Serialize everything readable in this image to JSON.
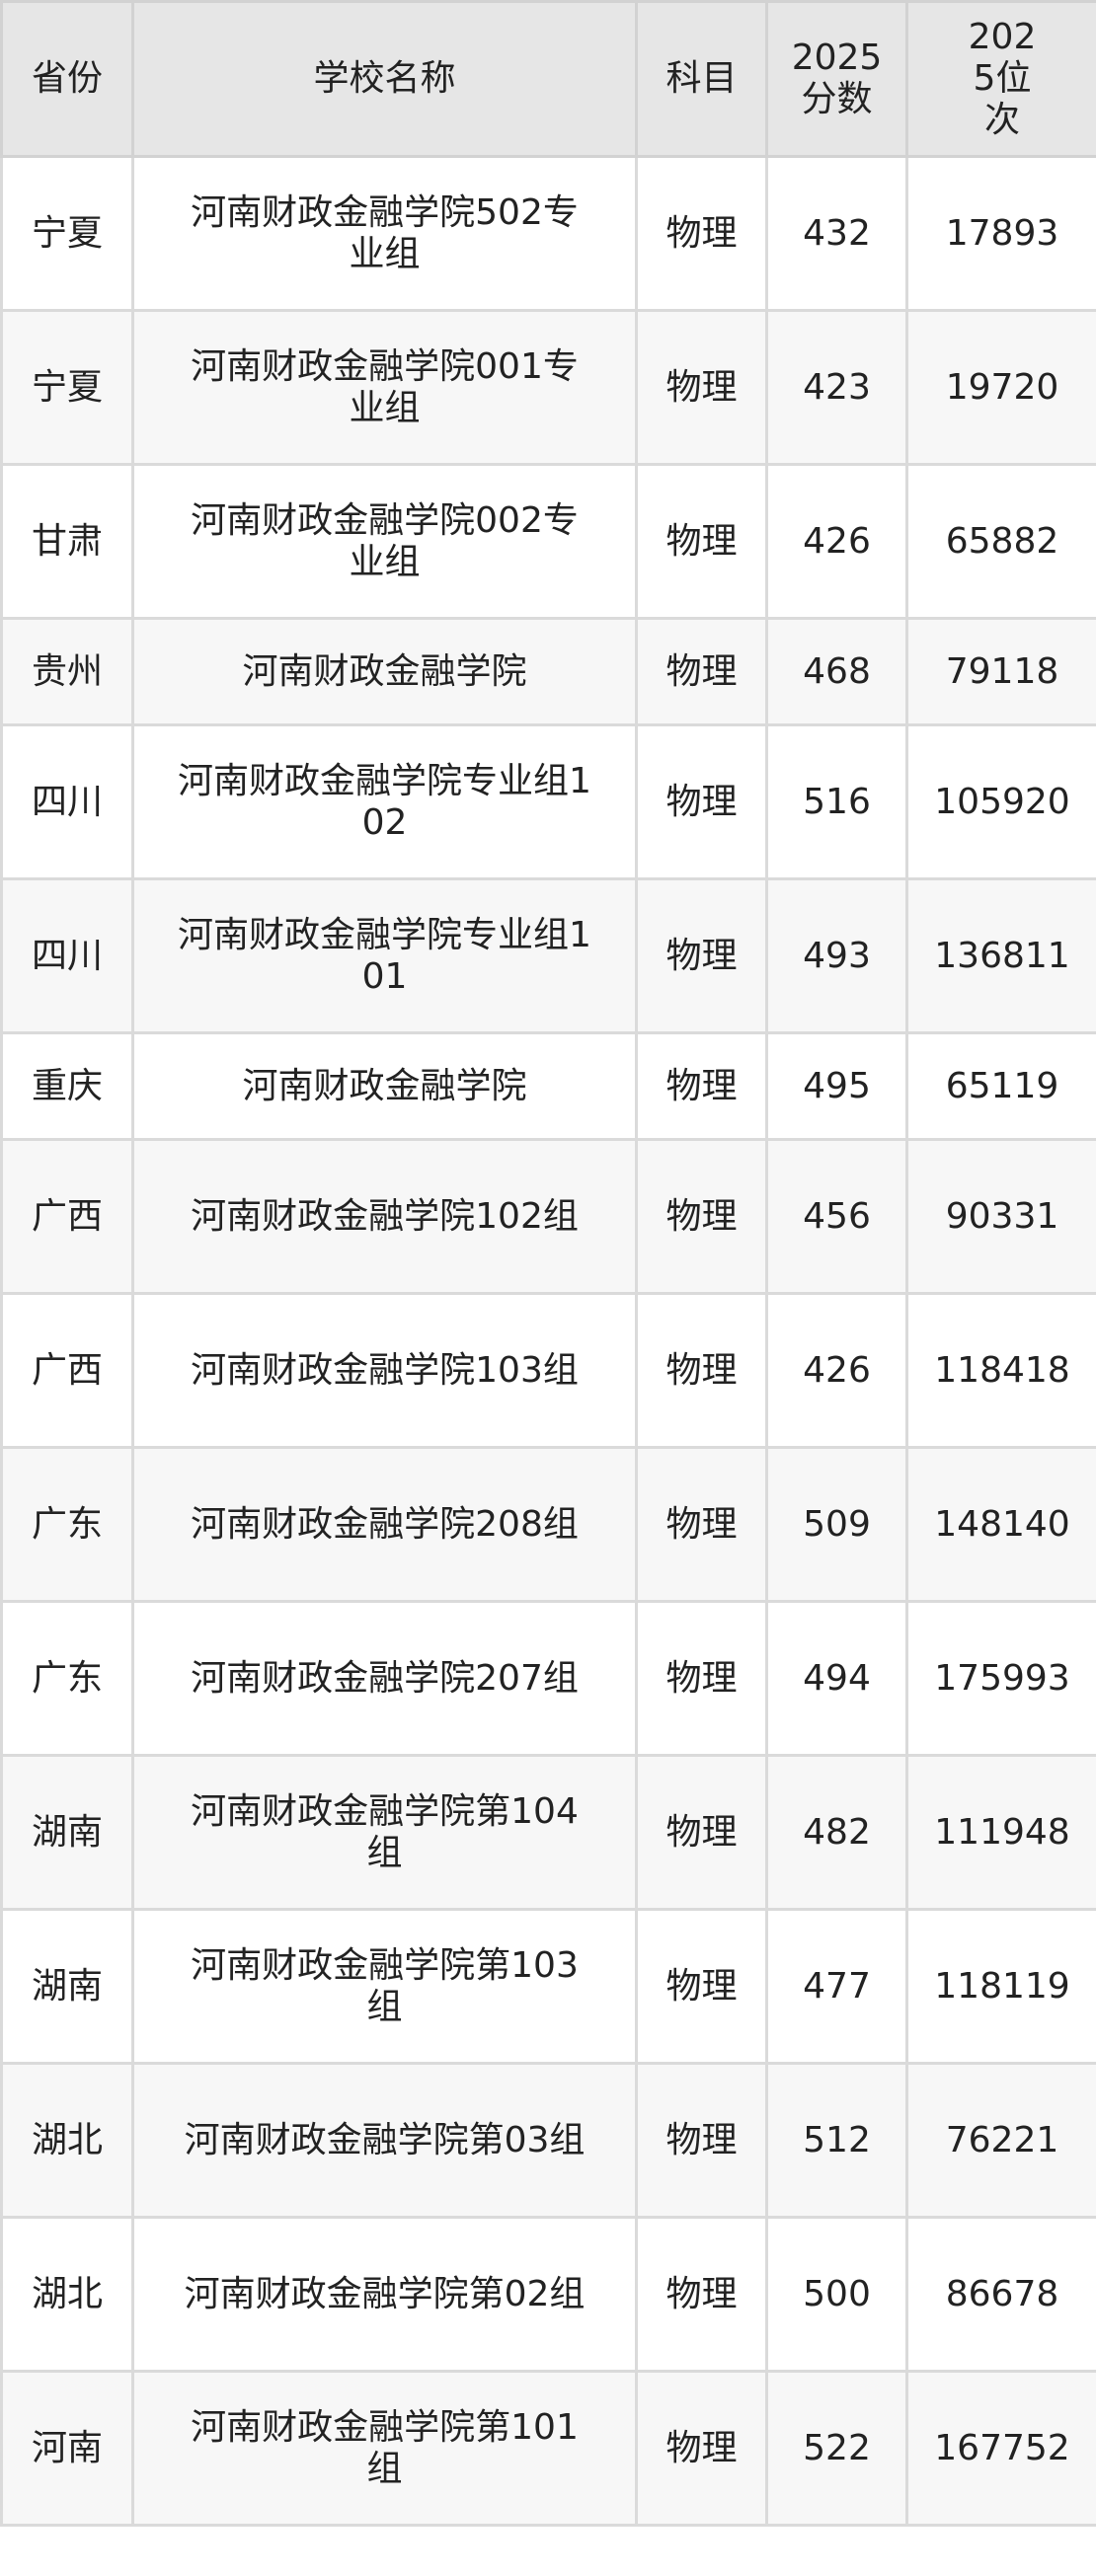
{
  "headers": [
    "省份",
    "学校名称",
    "科目",
    "2025分数",
    "2025位次"
  ],
  "rows": [
    {
      "province": "宁夏",
      "school": "河南财政金融学院502专业组",
      "subject": "物理",
      "score": "432",
      "rank": "17893"
    },
    {
      "province": "宁夏",
      "school": "河南财政金融学院001专业组",
      "subject": "物理",
      "score": "423",
      "rank": "19720"
    },
    {
      "province": "甘肃",
      "school": "河南财政金融学院002专业组",
      "subject": "物理",
      "score": "426",
      "rank": "65882"
    },
    {
      "province": "贵州",
      "school": "河南财政金融学院",
      "subject": "物理",
      "score": "468",
      "rank": "79118"
    },
    {
      "province": "四川",
      "school": "河南财政金融学院专业组102",
      "subject": "物理",
      "score": "516",
      "rank": "105920"
    },
    {
      "province": "四川",
      "school": "河南财政金融学院专业组101",
      "subject": "物理",
      "score": "493",
      "rank": "136811"
    },
    {
      "province": "重庆",
      "school": "河南财政金融学院",
      "subject": "物理",
      "score": "495",
      "rank": "65119"
    },
    {
      "province": "广西",
      "school": "河南财政金融学院102组",
      "subject": "物理",
      "score": "456",
      "rank": "90331"
    },
    {
      "province": "广西",
      "school": "河南财政金融学院103组",
      "subject": "物理",
      "score": "426",
      "rank": "118418"
    },
    {
      "province": "广东",
      "school": "河南财政金融学院208组",
      "subject": "物理",
      "score": "509",
      "rank": "148140"
    },
    {
      "province": "广东",
      "school": "河南财政金融学院207组",
      "subject": "物理",
      "score": "494",
      "rank": "175993"
    },
    {
      "province": "湖南",
      "school": "河南财政金融学院第104组",
      "subject": "物理",
      "score": "482",
      "rank": "111948"
    },
    {
      "province": "湖南",
      "school": "河南财政金融学院第103组",
      "subject": "物理",
      "score": "477",
      "rank": "118119"
    },
    {
      "province": "湖北",
      "school": "河南财政金融学院第03组",
      "subject": "物理",
      "score": "512",
      "rank": "76221"
    },
    {
      "province": "湖北",
      "school": "河南财政金融学院第02组",
      "subject": "物理",
      "score": "500",
      "rank": "86678"
    },
    {
      "province": "河南",
      "school": "河南财政金融学院第101组",
      "subject": "物理",
      "score": "522",
      "rank": "167752"
    }
  ]
}
